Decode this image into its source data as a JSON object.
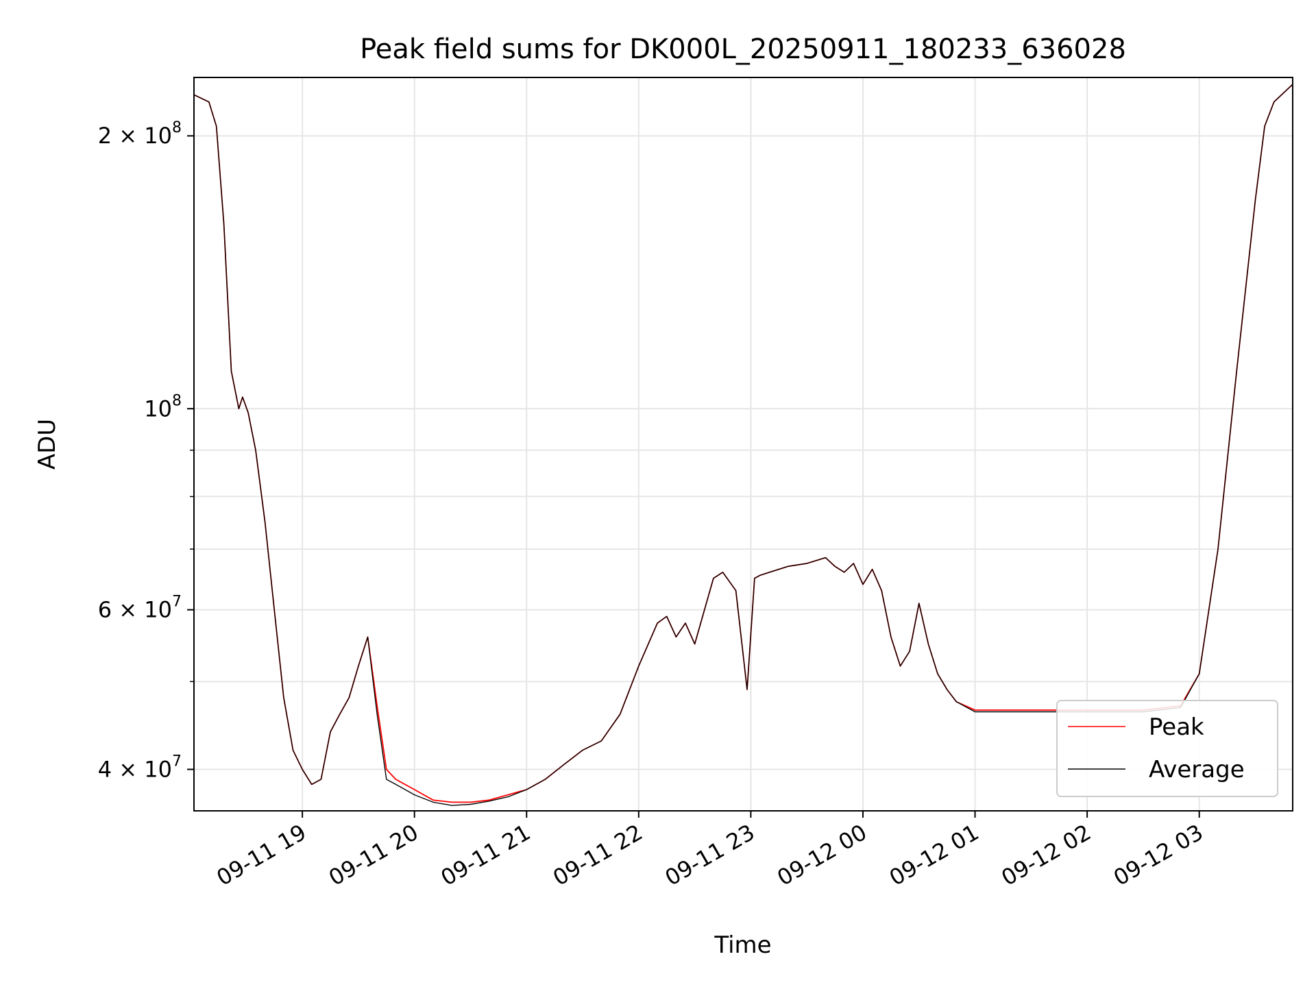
{
  "chart_data": {
    "type": "line",
    "title": "Peak field sums for DK000L_20250911_180233_636028",
    "xlabel": "Time",
    "ylabel": "ADU",
    "yscale": "log",
    "xlim": [
      "2025-09-11 18:02",
      "2025-09-12 03:50"
    ],
    "ylim": [
      36000000,
      232000000
    ],
    "grid": true,
    "legend_position": "bottom-right",
    "x_ticks": [
      "09-11 19",
      "09-11 20",
      "09-11 21",
      "09-11 22",
      "09-11 23",
      "09-12 00",
      "09-12 01",
      "09-12 02",
      "09-12 03"
    ],
    "y_ticks": [
      {
        "base": "4 × 10",
        "exp": "7",
        "value": 40000000
      },
      {
        "base": "6 × 10",
        "exp": "7",
        "value": 60000000
      },
      {
        "base": "10",
        "exp": "8",
        "value": 100000000
      },
      {
        "base": "2 × 10",
        "exp": "8",
        "value": 200000000
      }
    ],
    "series": [
      {
        "name": "Peak",
        "color": "#ff0000",
        "x": [
          "2025-09-11 18:02",
          "2025-09-11 18:10",
          "2025-09-11 18:14",
          "2025-09-11 18:18",
          "2025-09-11 18:22",
          "2025-09-11 18:26",
          "2025-09-11 18:28",
          "2025-09-11 18:31",
          "2025-09-11 18:35",
          "2025-09-11 18:40",
          "2025-09-11 18:45",
          "2025-09-11 18:50",
          "2025-09-11 18:55",
          "2025-09-11 19:00",
          "2025-09-11 19:05",
          "2025-09-11 19:10",
          "2025-09-11 19:15",
          "2025-09-11 19:20",
          "2025-09-11 19:25",
          "2025-09-11 19:30",
          "2025-09-11 19:35",
          "2025-09-11 19:40",
          "2025-09-11 19:45",
          "2025-09-11 19:50",
          "2025-09-11 20:00",
          "2025-09-11 20:10",
          "2025-09-11 20:20",
          "2025-09-11 20:30",
          "2025-09-11 20:40",
          "2025-09-11 20:50",
          "2025-09-11 21:00",
          "2025-09-11 21:10",
          "2025-09-11 21:20",
          "2025-09-11 21:30",
          "2025-09-11 21:40",
          "2025-09-11 21:50",
          "2025-09-11 22:00",
          "2025-09-11 22:10",
          "2025-09-11 22:15",
          "2025-09-11 22:20",
          "2025-09-11 22:25",
          "2025-09-11 22:30",
          "2025-09-11 22:40",
          "2025-09-11 22:45",
          "2025-09-11 22:52",
          "2025-09-11 22:58",
          "2025-09-11 23:02",
          "2025-09-11 23:05",
          "2025-09-11 23:10",
          "2025-09-11 23:20",
          "2025-09-11 23:30",
          "2025-09-11 23:40",
          "2025-09-11 23:45",
          "2025-09-11 23:50",
          "2025-09-11 23:55",
          "2025-09-12 00:00",
          "2025-09-12 00:05",
          "2025-09-12 00:10",
          "2025-09-12 00:15",
          "2025-09-12 00:20",
          "2025-09-12 00:25",
          "2025-09-12 00:30",
          "2025-09-12 00:35",
          "2025-09-12 00:40",
          "2025-09-12 00:45",
          "2025-09-12 00:50",
          "2025-09-12 01:00",
          "2025-09-12 01:30",
          "2025-09-12 02:00",
          "2025-09-12 02:30",
          "2025-09-12 02:50",
          "2025-09-12 03:00",
          "2025-09-12 03:10",
          "2025-09-12 03:20",
          "2025-09-12 03:30",
          "2025-09-12 03:35",
          "2025-09-12 03:40",
          "2025-09-12 03:50"
        ],
        "values": [
          222000000,
          218000000,
          205000000,
          160000000,
          110000000,
          100000000,
          103000000,
          99000000,
          90000000,
          75000000,
          60000000,
          48000000,
          42000000,
          40000000,
          38500000,
          39000000,
          44000000,
          46000000,
          48000000,
          52000000,
          56000000,
          47000000,
          40000000,
          39000000,
          38000000,
          37000000,
          36800000,
          36800000,
          37000000,
          37500000,
          38000000,
          39000000,
          40500000,
          42000000,
          43000000,
          46000000,
          52000000,
          58000000,
          59000000,
          56000000,
          58000000,
          55000000,
          65000000,
          66000000,
          63000000,
          49000000,
          65000000,
          65500000,
          66000000,
          67000000,
          67500000,
          68500000,
          67000000,
          66000000,
          67500000,
          64000000,
          66500000,
          63000000,
          56000000,
          52000000,
          54000000,
          61000000,
          55000000,
          51000000,
          49000000,
          47500000,
          46500000,
          46500000,
          46500000,
          46500000,
          47000000,
          51000000,
          70000000,
          110000000,
          170000000,
          205000000,
          218000000,
          228000000
        ]
      },
      {
        "name": "Average",
        "color": "#000000",
        "x": [
          "2025-09-11 18:02",
          "2025-09-11 18:10",
          "2025-09-11 18:14",
          "2025-09-11 18:18",
          "2025-09-11 18:22",
          "2025-09-11 18:26",
          "2025-09-11 18:28",
          "2025-09-11 18:31",
          "2025-09-11 18:35",
          "2025-09-11 18:40",
          "2025-09-11 18:45",
          "2025-09-11 18:50",
          "2025-09-11 18:55",
          "2025-09-11 19:00",
          "2025-09-11 19:05",
          "2025-09-11 19:10",
          "2025-09-11 19:15",
          "2025-09-11 19:20",
          "2025-09-11 19:25",
          "2025-09-11 19:30",
          "2025-09-11 19:35",
          "2025-09-11 19:40",
          "2025-09-11 19:45",
          "2025-09-11 19:50",
          "2025-09-11 20:00",
          "2025-09-11 20:10",
          "2025-09-11 20:20",
          "2025-09-11 20:30",
          "2025-09-11 20:40",
          "2025-09-11 20:50",
          "2025-09-11 21:00",
          "2025-09-11 21:10",
          "2025-09-11 21:20",
          "2025-09-11 21:30",
          "2025-09-11 21:40",
          "2025-09-11 21:50",
          "2025-09-11 22:00",
          "2025-09-11 22:10",
          "2025-09-11 22:15",
          "2025-09-11 22:20",
          "2025-09-11 22:25",
          "2025-09-11 22:30",
          "2025-09-11 22:40",
          "2025-09-11 22:45",
          "2025-09-11 22:52",
          "2025-09-11 22:58",
          "2025-09-11 23:02",
          "2025-09-11 23:05",
          "2025-09-11 23:10",
          "2025-09-11 23:20",
          "2025-09-11 23:30",
          "2025-09-11 23:40",
          "2025-09-11 23:45",
          "2025-09-11 23:50",
          "2025-09-11 23:55",
          "2025-09-12 00:00",
          "2025-09-12 00:05",
          "2025-09-12 00:10",
          "2025-09-12 00:15",
          "2025-09-12 00:20",
          "2025-09-12 00:25",
          "2025-09-12 00:30",
          "2025-09-12 00:35",
          "2025-09-12 00:40",
          "2025-09-12 00:45",
          "2025-09-12 00:50",
          "2025-09-12 01:00",
          "2025-09-12 01:30",
          "2025-09-12 02:00",
          "2025-09-12 02:30",
          "2025-09-12 02:50",
          "2025-09-12 03:00",
          "2025-09-12 03:10",
          "2025-09-12 03:20",
          "2025-09-12 03:30",
          "2025-09-12 03:35",
          "2025-09-12 03:40",
          "2025-09-12 03:50"
        ],
        "values": [
          222000000,
          218000000,
          205000000,
          160000000,
          110000000,
          100000000,
          103000000,
          99000000,
          90000000,
          75000000,
          60000000,
          48000000,
          42000000,
          40000000,
          38500000,
          39000000,
          44000000,
          46000000,
          48000000,
          52000000,
          56000000,
          46000000,
          39000000,
          38500000,
          37500000,
          36800000,
          36500000,
          36600000,
          36900000,
          37300000,
          38000000,
          39000000,
          40500000,
          42000000,
          43000000,
          46000000,
          52000000,
          58000000,
          59000000,
          56000000,
          58000000,
          55000000,
          65000000,
          66000000,
          63000000,
          49000000,
          65000000,
          65500000,
          66000000,
          67000000,
          67500000,
          68500000,
          67000000,
          66000000,
          67500000,
          64000000,
          66500000,
          63000000,
          56000000,
          52000000,
          54000000,
          61000000,
          55000000,
          51000000,
          49000000,
          47500000,
          46300000,
          46300000,
          46300000,
          46300000,
          46800000,
          51000000,
          70000000,
          110000000,
          170000000,
          205000000,
          218000000,
          228000000
        ]
      }
    ]
  }
}
